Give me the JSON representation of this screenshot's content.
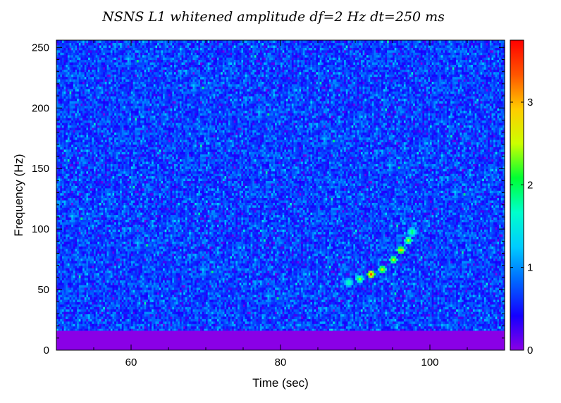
{
  "chart_data": {
    "type": "heatmap",
    "title": "NSNS L1 whitened amplitude df=2 Hz dt=250 ms",
    "xlabel": "Time (sec)",
    "ylabel": "Frequency (Hz)",
    "xlim": [
      50,
      110
    ],
    "ylim": [
      0,
      256
    ],
    "x_ticks": [
      60,
      80,
      100
    ],
    "y_ticks": [
      0,
      50,
      100,
      150,
      200,
      250
    ],
    "colorbar": {
      "range": [
        0,
        3.75
      ],
      "ticks": [
        0,
        1,
        2,
        3
      ],
      "colormap": [
        "#8a00e6",
        "#1400ff",
        "#0066ff",
        "#00ccff",
        "#00ffcc",
        "#00ff33",
        "#ccff00",
        "#ffcc00",
        "#ff5500",
        "#ff0000"
      ]
    },
    "background_level": 0.8,
    "low_freq_cutoff_hz": 16,
    "chirp": {
      "description": "visible chirp track",
      "points": [
        {
          "t": 89.0,
          "f": 55,
          "amp": 2.0
        },
        {
          "t": 90.5,
          "f": 58,
          "amp": 2.4
        },
        {
          "t": 92.0,
          "f": 62,
          "amp": 3.5
        },
        {
          "t": 93.5,
          "f": 66,
          "amp": 2.8
        },
        {
          "t": 95.0,
          "f": 74,
          "amp": 2.7
        },
        {
          "t": 96.0,
          "f": 82,
          "amp": 3.0
        },
        {
          "t": 97.0,
          "f": 90,
          "amp": 2.5
        },
        {
          "t": 97.5,
          "f": 97,
          "amp": 2.2
        }
      ]
    }
  }
}
